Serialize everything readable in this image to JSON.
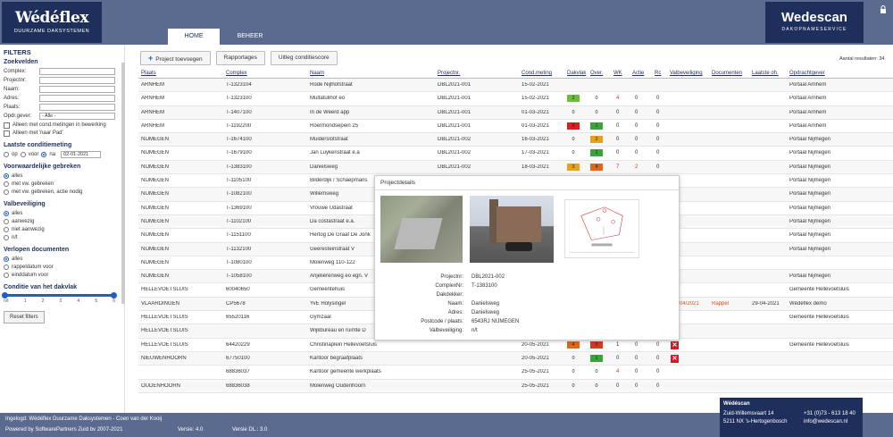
{
  "header": {
    "logo_left": "Wédéflex",
    "logo_left_sub": "DUURZAME DAKSYSTEMEN",
    "logo_right": "Wedescan",
    "logo_right_sub": "DAKOPNAMESERVICE",
    "nav": [
      {
        "label": "HOME",
        "active": true
      },
      {
        "label": "BEHEER",
        "active": false
      }
    ]
  },
  "sidebar": {
    "title": "FILTERS",
    "zoekvelden": "Zoekvelden",
    "fields": [
      {
        "label": "Complex:"
      },
      {
        "label": "Projectnr:"
      },
      {
        "label": "Naam:"
      },
      {
        "label": "Adres:"
      },
      {
        "label": "Plaats:"
      }
    ],
    "opdr_label": "Opdr.gever:",
    "opdr_value": "- Alle -",
    "check1": "Alleen met cond.metingen in bewerking",
    "check2": "Alleen met 'naar Pad'",
    "laatste_title": "Laatste conditiemeting",
    "laatste_op": "op",
    "laatste_voor": "voor",
    "laatste_na": "na",
    "laatste_date": "02-01-2021",
    "voorw_title": "Voorwaardelijke gebreken",
    "voorw_opts": [
      "alles",
      "met vw. gebreken",
      "met vw. gebreken, actie nodig"
    ],
    "valb_title": "Valbeveiliging",
    "valb_opts": [
      "alles",
      "aanwezig",
      "niet aanwezig",
      "n/t"
    ],
    "verl_title": "Verlopen documenten",
    "verl_opts": [
      "alles",
      "rappeldatum voor",
      "einddatum voor"
    ],
    "cond_title": "Conditie van het dakvlak",
    "cond_ticks": [
      "n/t",
      "1",
      "2",
      "3",
      "4",
      "5",
      "6"
    ],
    "reset": "Reset filters"
  },
  "toolbar": {
    "add": "Project toevoegen",
    "rapportages": "Rapportages",
    "uitleg": "Uitleg conditiescore",
    "result": "Aantal resultaten: 34"
  },
  "table": {
    "headers": [
      "Plaats",
      "Complex",
      "Naam",
      "Projectnr.",
      "Cond.meting",
      "Dakvlak",
      "Over.",
      "WK",
      "Actie",
      "Rc",
      "Valbeveiliging",
      "Documenten",
      "Laatste oh.",
      "Opdrachtgever"
    ],
    "rows": [
      {
        "plaats": "ARNHEM",
        "complex": "T-1323104",
        "naam": "Rode Nijlhofstraat",
        "proj": "DBL2021-001",
        "cond": "15-02-2021",
        "b1": "",
        "b2": "",
        "n1": "",
        "n2": "",
        "n3": "",
        "opdr": "Portaal Arnhem"
      },
      {
        "plaats": "ARNHEM",
        "complex": "T-1323100",
        "naam": "Multatulihof eo",
        "proj": "DBL2021-001",
        "cond": "15-02-2021",
        "b1": "2",
        "c1": "#6abf3a",
        "b2": "0",
        "c2": "",
        "n1": "4",
        "n1c": "#d33",
        "n2": "0",
        "n3": "0",
        "opdr": "Portaal Arnhem"
      },
      {
        "plaats": "ARNHEM",
        "complex": "T-1407100",
        "naam": "In de Weerd app",
        "proj": "DBL2021-001",
        "cond": "01-03-2021",
        "b1": "0",
        "c1": "",
        "b2": "0",
        "c2": "",
        "n1": "0",
        "n2": "0",
        "n3": "0",
        "opdr": "Portaal Arnhem"
      },
      {
        "plaats": "ARNHEM",
        "complex": "T-1192200",
        "naam": "Roermondsepein 25",
        "proj": "DBL2021-001",
        "cond": "01-03-2021",
        "b1": "6",
        "c1": "#d82020",
        "b2": "1",
        "c2": "#3aa33a",
        "n1": "0",
        "n2": "0",
        "n3": "0",
        "opdr": "Portaal Arnhem"
      },
      {
        "plaats": "NIJMEGEN",
        "complex": "T-1674100",
        "naam": "Muiderslotstraat",
        "proj": "DBL2021-002",
        "cond": "16-03-2021",
        "b1": "0",
        "c1": "",
        "b2": "2",
        "c2": "#e8a21a",
        "n1": "0",
        "n2": "0",
        "n3": "0",
        "opdr": "Portaal Nijmegen"
      },
      {
        "plaats": "NIJMEGEN",
        "complex": "T-1679100",
        "naam": "Jan Luykenstraat e.a",
        "proj": "DBL2021-002",
        "cond": "17-03-2021",
        "b1": "0",
        "c1": "",
        "b2": "1",
        "c2": "#3aa33a",
        "n1": "0",
        "n2": "0",
        "n3": "0",
        "opdr": "Portaal Nijmegen"
      },
      {
        "plaats": "NIJMEGEN",
        "complex": "T-1383100",
        "naam": "Danielsweg",
        "proj": "DBL2021-002",
        "cond": "18-03-2021",
        "b1": "3",
        "c1": "#e8a21a",
        "b2": "4",
        "c2": "#e0661a",
        "n1": "7",
        "n1c": "#d33",
        "n2": "2",
        "n2c": "#d33",
        "n3": "0",
        "opdr": "Portaal Nijmegen"
      },
      {
        "plaats": "NIJMEGEN",
        "complex": "T-1105100",
        "naam": "Bilderdijk / Schaepmans",
        "proj": "",
        "cond": "",
        "b1": "",
        "b2": "",
        "n1": "",
        "n2": "",
        "n3": "",
        "opdr": "Portaal Nijmegen"
      },
      {
        "plaats": "NIJMEGEN",
        "complex": "T-1082100",
        "naam": "Willemsweg",
        "proj": "",
        "cond": "",
        "b1": "",
        "b2": "",
        "n1": "",
        "n2": "",
        "n3": "",
        "opdr": "Portaal Nijmegen"
      },
      {
        "plaats": "NIJMEGEN",
        "complex": "T-1369100",
        "naam": "Vrouwe Udastraat",
        "proj": "",
        "cond": "",
        "b1": "",
        "b2": "",
        "n1": "",
        "n2": "",
        "n3": "",
        "opdr": "Portaal Nijmegen"
      },
      {
        "plaats": "NIJMEGEN",
        "complex": "T-1102100",
        "naam": "Da costastraat e.a.",
        "proj": "",
        "cond": "",
        "b1": "",
        "b2": "",
        "n1": "",
        "n2": "",
        "n3": "",
        "opdr": "Portaal Nijmegen"
      },
      {
        "plaats": "NIJMEGEN",
        "complex": "T-1151100",
        "naam": "Hertog De Graaf De Jonk",
        "proj": "",
        "cond": "",
        "b1": "",
        "b2": "",
        "n1": "",
        "n2": "",
        "n3": "",
        "opdr": "Portaal Nijmegen"
      },
      {
        "plaats": "NIJMEGEN",
        "complex": "T-1132100",
        "naam": "Geeresteinstraat V",
        "proj": "",
        "cond": "",
        "b1": "",
        "b2": "",
        "n1": "",
        "n2": "",
        "n3": "",
        "opdr": "Portaal Nijmegen"
      },
      {
        "plaats": "NIJMEGEN",
        "complex": "T-1080100",
        "naam": "Molenweg 110-122",
        "proj": "",
        "cond": "",
        "b1": "",
        "b2": "",
        "n1": "",
        "n2": "",
        "n3": "",
        "opdr": ""
      },
      {
        "plaats": "NIJMEGEN",
        "complex": "T-1058100",
        "naam": "Anjelierenweg eo egn. V",
        "proj": "",
        "cond": "",
        "b1": "",
        "b2": "",
        "n1": "",
        "n2": "",
        "n3": "",
        "opdr": "Portaal Nijmegen"
      },
      {
        "plaats": "HELLEVOETSLUIS",
        "complex": "60040650",
        "naam": "Gemeentehuis",
        "proj": "",
        "cond": "",
        "b1": "",
        "b2": "",
        "n1": "",
        "n2": "",
        "n3": "",
        "opdr": "Gemeente Hellevoetsluis"
      },
      {
        "plaats": "VLAARDINGEN",
        "complex": "CP5678",
        "naam": "YvE Holysingel",
        "proj": "",
        "cond": "",
        "b1": "",
        "b2": "",
        "n1": "",
        "n2": "",
        "n3": "",
        "docs": "04/2021",
        "rappel": "Rappel",
        "laatste": "29-04-2021",
        "opdr": "Wédéflex demo"
      },
      {
        "plaats": "HELLEVOETSLUIS",
        "complex": "65520116",
        "naam": "Gymzaal",
        "proj": "",
        "cond": "",
        "b1": "",
        "b2": "",
        "n1": "",
        "n2": "",
        "n3": "",
        "opdr": "Gemeente Hellevoetsluis"
      },
      {
        "plaats": "HELLEVOETSLUIS",
        "complex": "",
        "naam": "Wijkbureau en ruimte D",
        "proj": "",
        "cond": "",
        "b1": "",
        "b2": "",
        "n1": "",
        "n2": "",
        "n3": "",
        "opdr": ""
      },
      {
        "plaats": "HELLEVOETSLUIS",
        "complex": "64420229",
        "naam": "Christinaplein Hellevoetsluis",
        "proj": "",
        "cond": "20-05-2021",
        "b1": "4",
        "c1": "#e0661a",
        "b2": "5",
        "c2": "#d83820",
        "n1": "1",
        "n2": "0",
        "n3": "0",
        "x": true,
        "opdr": "Gemeente Hellevoetsluis"
      },
      {
        "plaats": "NIEUWENHOORN",
        "complex": "67750100",
        "naam": "Kantoor begraafplaats",
        "proj": "",
        "cond": "20-05-2021",
        "b1": "0",
        "c1": "",
        "b2": "1",
        "c2": "#3aa33a",
        "n1": "0",
        "n2": "0",
        "n3": "0",
        "x": true,
        "opdr": ""
      },
      {
        "plaats": "",
        "complex": "68836037",
        "naam": "Kantoor gemeente werkplaats",
        "proj": "",
        "cond": "25-05-2021",
        "b1": "0",
        "c1": "",
        "b2": "0",
        "c2": "",
        "n1": "4",
        "n1c": "#d33",
        "n2": "0",
        "n3": "0",
        "opdr": ""
      },
      {
        "plaats": "OUDENHOORN",
        "complex": "68836038",
        "naam": "Molenweg Oudenhoorn",
        "proj": "",
        "cond": "25-05-2021",
        "b1": "0",
        "c1": "",
        "b2": "0",
        "c2": "",
        "n1": "0",
        "n2": "0",
        "n3": "0",
        "opdr": ""
      }
    ]
  },
  "popup": {
    "title": "Projectdetails",
    "details": [
      {
        "k": "Projectnr:",
        "v": "DBL2021-002"
      },
      {
        "k": "ComplexNr:",
        "v": "T-1383100"
      },
      {
        "k": "Dakdekker:",
        "v": ""
      },
      {
        "k": "Naam:",
        "v": "Danielsweg"
      },
      {
        "k": "Adres:",
        "v": "Danielsweg"
      },
      {
        "k": "Postcode / plaats:",
        "v": "6543RJ NIJMEGEN"
      },
      {
        "k": "Valbeveiliging:",
        "v": "n/t"
      }
    ]
  },
  "footer": {
    "ingelogd": "Ingelogd: Wédéflex Duurzame Daksystemen - Coen van der Kooij",
    "powered": "Powered by SoftwarePartners Zuid bv 2007-2021",
    "versie": "Versie: 4.0",
    "versie_dl": "Versie DL.: 3.0"
  },
  "contact": {
    "name": "Wédéscan",
    "addr1": "Zuid-Willemsvaart 14",
    "addr2": "5211 NX 's-Hertogenbosch",
    "phone": "+31 (0)73 - 613 18 40",
    "email": "info@wedescan.nl"
  }
}
